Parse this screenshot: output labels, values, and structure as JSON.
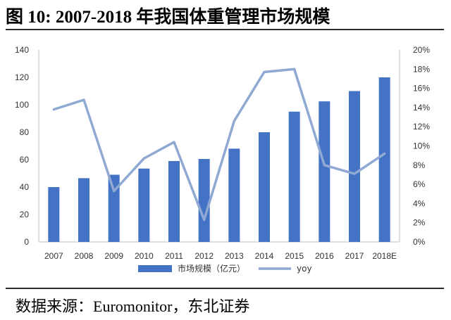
{
  "header": {
    "title": "图  10:  2007-2018 年我国体重管理市场规模"
  },
  "footer": {
    "source": "数据来源：Euromonitor，东北证券"
  },
  "chart_data": {
    "type": "bar",
    "categories": [
      "2007",
      "2008",
      "2009",
      "2010",
      "2011",
      "2012",
      "2013",
      "2014",
      "2015",
      "2016",
      "2017",
      "2018E"
    ],
    "series": [
      {
        "name": "市场规模（亿元）",
        "type": "bar",
        "axis": "left",
        "color": "#4472c4",
        "values": [
          40,
          46.5,
          49,
          53.5,
          59,
          60.5,
          68,
          80,
          95,
          102.5,
          110,
          120
        ]
      },
      {
        "name": "yoy",
        "type": "line",
        "axis": "right",
        "color": "#8fa9d3",
        "values": [
          13.8,
          14.8,
          5.3,
          8.7,
          10.4,
          2.3,
          12.6,
          17.7,
          18.0,
          8.0,
          7.1,
          9.2
        ]
      }
    ],
    "left_axis": {
      "min": 0,
      "max": 140,
      "step": 20,
      "tick_labels": [
        "0",
        "20",
        "40",
        "60",
        "80",
        "100",
        "120",
        "140"
      ]
    },
    "right_axis": {
      "min": 0,
      "max": 20,
      "step": 2,
      "tick_labels": [
        "0%",
        "2%",
        "4%",
        "6%",
        "8%",
        "10%",
        "12%",
        "14%",
        "16%",
        "18%",
        "20%"
      ]
    },
    "grid": false,
    "legend": "bottom"
  }
}
